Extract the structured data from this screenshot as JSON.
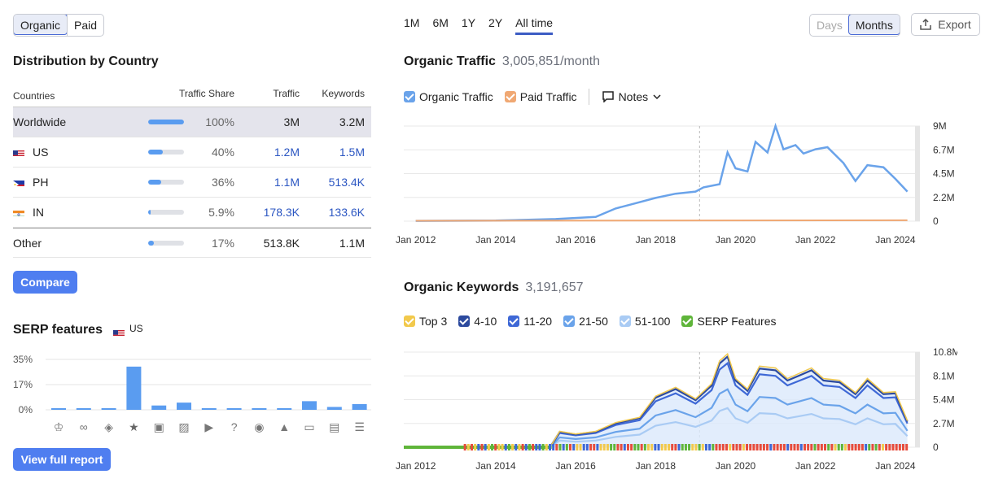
{
  "traffic_toggle": {
    "organic": "Organic",
    "paid": "Paid"
  },
  "distribution": {
    "title": "Distribution by Country",
    "headers": {
      "countries": "Countries",
      "share": "Traffic Share",
      "traffic": "Traffic",
      "keywords": "Keywords"
    },
    "rows": [
      {
        "name": "Worldwide",
        "share": "100%",
        "share_value": 1.0,
        "traffic": "3M",
        "keywords": "3.2M"
      },
      {
        "name": "US",
        "share": "40%",
        "share_value": 0.4,
        "traffic": "1.2M",
        "keywords": "1.5M"
      },
      {
        "name": "PH",
        "share": "36%",
        "share_value": 0.36,
        "traffic": "1.1M",
        "keywords": "513.4K"
      },
      {
        "name": "IN",
        "share": "5.9%",
        "share_value": 0.059,
        "traffic": "178.3K",
        "keywords": "133.6K"
      },
      {
        "name": "Other",
        "share": "17%",
        "share_value": 0.17,
        "traffic": "513.8K",
        "keywords": "1.1M"
      }
    ],
    "compare_label": "Compare"
  },
  "serp": {
    "title": "SERP features",
    "country": "US",
    "view_report_label": "View full report",
    "icons": [
      "crown-icon",
      "link-icon",
      "diamond-icon",
      "star-icon",
      "image-icon",
      "gallery-icon",
      "video-icon",
      "faq-icon",
      "location-icon",
      "graduation-icon",
      "comment-icon",
      "book-icon",
      "list-icon"
    ]
  },
  "periods": [
    "1M",
    "6M",
    "1Y",
    "2Y",
    "All time"
  ],
  "granularity": {
    "days": "Days",
    "months": "Months"
  },
  "export_label": "Export",
  "organic_traffic": {
    "title": "Organic Traffic",
    "value": "3,005,851/month",
    "legend": {
      "organic": "Organic Traffic",
      "paid": "Paid Traffic",
      "notes": "Notes"
    }
  },
  "organic_keywords": {
    "title": "Organic Keywords",
    "value": "3,191,657",
    "legend": [
      "Top 3",
      "4-10",
      "11-20",
      "21-50",
      "51-100",
      "SERP Features"
    ]
  },
  "colors": {
    "accent": "#4f7ef0",
    "organic_line": "#6aa3ea",
    "paid_line": "#f0a873",
    "top3": "#f2c94c",
    "k4_10": "#2c4a9e",
    "k11_20": "#3e68d6",
    "k21_50": "#6aa3ea",
    "k51_100": "#a9cbf4",
    "serp": "#5fb53a"
  },
  "chart_data": [
    {
      "type": "bar",
      "title": "SERP features",
      "categories": [
        "Top stories",
        "Sitelinks",
        "Featured snippet",
        "Reviews",
        "Image",
        "Image pack",
        "Video",
        "People also ask",
        "Local pack",
        "Knowledge panel",
        "Reviews block",
        "Books",
        "List"
      ],
      "values": [
        1,
        1,
        1,
        30,
        3,
        5,
        1,
        1,
        0,
        1,
        6,
        2,
        4
      ],
      "yticks": [
        "35%",
        "17%",
        "0%"
      ],
      "ylim": [
        0,
        35
      ]
    },
    {
      "type": "line",
      "title": "Organic Traffic",
      "xticks": [
        "Jan 2012",
        "Jan 2014",
        "Jan 2016",
        "Jan 2018",
        "Jan 2020",
        "Jan 2022",
        "Jan 2024"
      ],
      "yticks": [
        "9M",
        "6.7M",
        "4.5M",
        "2.2M",
        "0"
      ],
      "ylim": [
        0,
        9000000
      ],
      "series": [
        {
          "name": "Organic Traffic",
          "x": [
            2012,
            2014,
            2015.5,
            2016.5,
            2017,
            2017.5,
            2018,
            2018.5,
            2019,
            2019.2,
            2019.6,
            2019.8,
            2020,
            2020.3,
            2020.5,
            2020.8,
            2021,
            2021.2,
            2021.5,
            2021.7,
            2022,
            2022.3,
            2022.7,
            2023,
            2023.3,
            2023.7,
            2024,
            2024.3
          ],
          "y": [
            30000,
            50000,
            200000,
            400000,
            1200000,
            1700000,
            2200000,
            2600000,
            2800000,
            3200000,
            3500000,
            6500000,
            5000000,
            4700000,
            7500000,
            6500000,
            9000000,
            6800000,
            7200000,
            6400000,
            6800000,
            7000000,
            5500000,
            3800000,
            5300000,
            5100000,
            4000000,
            2800000
          ]
        },
        {
          "name": "Paid Traffic",
          "x": [
            2012,
            2024.3
          ],
          "y": [
            0,
            50000
          ]
        }
      ]
    },
    {
      "type": "area",
      "title": "Organic Keywords",
      "xticks": [
        "Jan 2012",
        "Jan 2014",
        "Jan 2016",
        "Jan 2018",
        "Jan 2020",
        "Jan 2022",
        "Jan 2024"
      ],
      "yticks": [
        "10.8M",
        "8.1M",
        "5.4M",
        "2.7M",
        "0"
      ],
      "ylim": [
        0,
        10800000
      ],
      "series": [
        {
          "name": "Top 3",
          "x": [
            2015.4,
            2015.6,
            2016,
            2016.5,
            2017,
            2017.6,
            2018,
            2018.5,
            2019,
            2019.4,
            2019.6,
            2019.8,
            2020,
            2020.3,
            2020.6,
            2021,
            2021.3,
            2021.6,
            2021.9,
            2022.2,
            2022.6,
            2023,
            2023.3,
            2023.7,
            2024,
            2024.3
          ],
          "y": [
            300000,
            1800000,
            1500000,
            1800000,
            2800000,
            3400000,
            5800000,
            6800000,
            5500000,
            7200000,
            9800000,
            10600000,
            7800000,
            6600000,
            9200000,
            9000000,
            7800000,
            8400000,
            9000000,
            7800000,
            7600000,
            6200000,
            7800000,
            6200000,
            6300000,
            3000000
          ]
        },
        {
          "name": "4-10",
          "x": [
            2015.4,
            2024.3
          ],
          "y": [
            280000,
            2900000
          ]
        },
        {
          "name": "11-20",
          "x": [
            2015.4,
            2024.3
          ],
          "y": [
            250000,
            2500000
          ]
        },
        {
          "name": "21-50",
          "x": [
            2015.4,
            2024.3
          ],
          "y": [
            200000,
            2000000
          ]
        },
        {
          "name": "51-100",
          "x": [
            2015.4,
            2024.3
          ],
          "y": [
            100000,
            900000
          ]
        }
      ]
    }
  ]
}
